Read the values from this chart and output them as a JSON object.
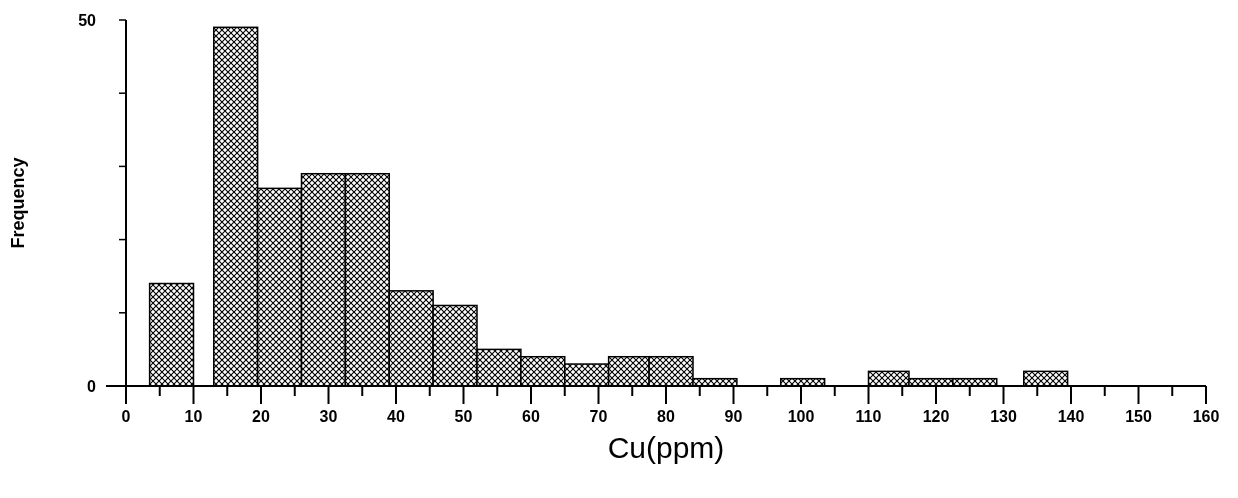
{
  "chart_data": {
    "type": "histogram",
    "xlabel": "Cu(ppm)",
    "ylabel": "Frequency",
    "bins": [
      3.5,
      10,
      13,
      19.5,
      26,
      32.5,
      39,
      45.5,
      52,
      58.5,
      65,
      71.5,
      77.5,
      84,
      90.5,
      97,
      103.5,
      110,
      116,
      122.5,
      129,
      133,
      139.5
    ],
    "values": [
      14,
      0,
      49,
      27,
      29,
      29,
      13,
      11,
      5,
      4,
      3,
      4,
      4,
      1,
      0,
      1,
      0,
      2,
      1,
      1,
      0,
      2
    ],
    "color": "#000000",
    "xlim": [
      0,
      160
    ],
    "xticks": [
      0,
      {
        "value": 5,
        "label": null
      },
      10,
      {
        "value": 15,
        "label": null
      },
      20,
      {
        "value": 25,
        "label": null
      },
      30,
      {
        "value": 35,
        "label": null
      },
      40,
      {
        "value": 45,
        "label": null
      },
      50,
      {
        "value": 55,
        "label": null
      },
      60,
      {
        "value": 65,
        "label": null
      },
      70,
      {
        "value": 75,
        "label": null
      },
      80,
      {
        "value": 85,
        "label": null
      },
      90,
      {
        "value": 95,
        "label": null
      },
      100,
      {
        "value": 105,
        "label": null
      },
      110,
      {
        "value": 115,
        "label": null
      },
      120,
      {
        "value": 125,
        "label": null
      },
      130,
      {
        "value": 135,
        "label": null
      },
      140,
      {
        "value": 145,
        "label": null
      },
      150,
      {
        "value": 155,
        "label": null
      },
      160
    ],
    "ylim": [
      0,
      50
    ],
    "yticks": [
      0,
      {
        "value": 10,
        "label": null
      },
      {
        "value": 20,
        "label": null
      },
      {
        "value": 30,
        "label": null
      },
      {
        "value": 40,
        "label": null
      },
      50
    ],
    "grid": false
  }
}
